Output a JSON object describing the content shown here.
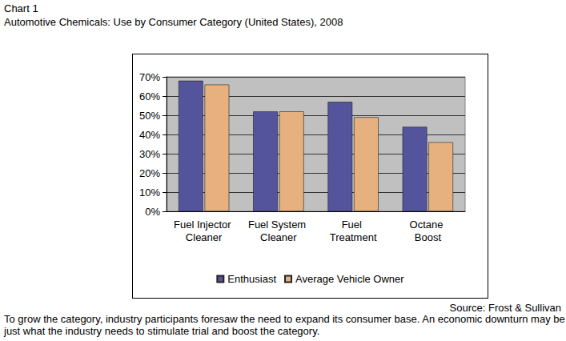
{
  "chart_data": {
    "type": "bar",
    "heading": "Chart 1",
    "title": "Automotive Chemicals: Use by Consumer Category (United States), 2008",
    "source": "Source: Frost & Sullivan",
    "caption": "To grow the category, industry participants foresaw the need to expand its consumer base. An economic downturn may be just what the industry needs to stimulate trial and boost the category.",
    "categories": [
      "Fuel Injector Cleaner",
      "Fuel System Cleaner",
      "Fuel Treatment",
      "Octane Boost"
    ],
    "series": [
      {
        "name": "Enthusiast",
        "color": "#54549c",
        "values": [
          68,
          52,
          57,
          44
        ]
      },
      {
        "name": "Average Vehicle Owner",
        "color": "#e6b07f",
        "values": [
          66,
          52,
          49,
          36
        ]
      }
    ],
    "ylim": [
      0,
      70
    ],
    "yticks": [
      {
        "value": 0,
        "label": "0%"
      },
      {
        "value": 10,
        "label": "10%"
      },
      {
        "value": 20,
        "label": "20%"
      },
      {
        "value": 30,
        "label": "30%"
      },
      {
        "value": 40,
        "label": "40%"
      },
      {
        "value": 50,
        "label": "50%"
      },
      {
        "value": 60,
        "label": "60%"
      },
      {
        "value": 70,
        "label": "70%"
      }
    ],
    "grid": true,
    "legend": "bottom"
  }
}
